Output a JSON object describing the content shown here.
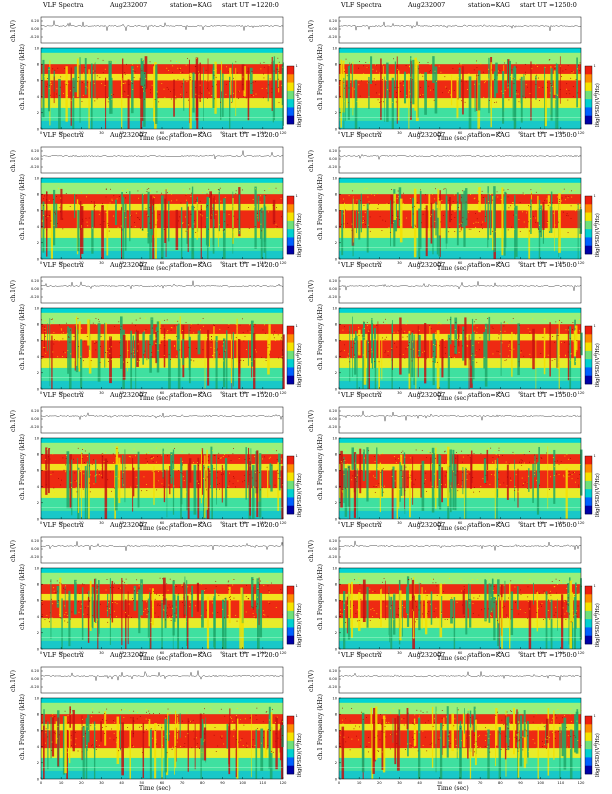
{
  "chart_data": [
    {
      "type": "heatmap",
      "title": "VLF Spectra",
      "date": "Aug232007",
      "station": "station=KAG",
      "start_label": "start  UT",
      "start_ut": "=1220:0",
      "top_ylabel": "ch.1(V)",
      "top_yticks": [
        "0.20",
        "0.00",
        "-0.20"
      ],
      "ylabel": "ch.1\nFrequency (kHz)",
      "xlabel": "Time (sec)",
      "xticks": [
        "0",
        "10",
        "20",
        "30",
        "40",
        "50",
        "60",
        "70",
        "80",
        "90",
        "100",
        "110",
        "120"
      ],
      "yticks": [
        "0",
        "2",
        "4",
        "6",
        "8",
        "10"
      ],
      "xlim": [
        0,
        120
      ],
      "ylim": [
        0,
        10
      ],
      "colorbar_label": "log(PSD)(V²/Hz)",
      "colorbar_ticks": [
        "-1",
        "0",
        "1"
      ],
      "colormap": "jet",
      "grid": false
    },
    {
      "type": "heatmap",
      "title": "VLF Spectra",
      "date": "Aug232007",
      "station": "station=KAG",
      "start_label": "start  UT",
      "start_ut": "=1250:0",
      "top_ylabel": "ch.1(V)",
      "top_yticks": [
        "0.20",
        "0.00",
        "-0.20"
      ],
      "ylabel": "ch.1\nFrequency (kHz)",
      "xlabel": "Time (sec)",
      "xticks": [
        "0",
        "10",
        "20",
        "30",
        "40",
        "50",
        "60",
        "70",
        "80",
        "90",
        "100",
        "110",
        "120"
      ],
      "yticks": [
        "0",
        "2",
        "4",
        "6",
        "8",
        "10"
      ],
      "xlim": [
        0,
        120
      ],
      "ylim": [
        0,
        10
      ],
      "colorbar_label": "log(PSD)(V²/Hz)",
      "colorbar_ticks": [
        "-1",
        "0",
        "1"
      ],
      "colormap": "jet",
      "grid": false
    },
    {
      "type": "heatmap",
      "title": "VLF Spectra",
      "date": "Aug232007",
      "station": "station=KAG",
      "start_label": "start  UT",
      "start_ut": "=1320:0",
      "top_ylabel": "ch.1(V)",
      "top_yticks": [
        "0.20",
        "0.00",
        "-0.20"
      ],
      "ylabel": "ch.1\nFrequency (kHz)",
      "xlabel": "Time (sec)",
      "xticks": [
        "0",
        "10",
        "20",
        "30",
        "40",
        "50",
        "60",
        "70",
        "80",
        "90",
        "100",
        "110",
        "120"
      ],
      "yticks": [
        "0",
        "2",
        "4",
        "6",
        "8",
        "10"
      ],
      "xlim": [
        0,
        120
      ],
      "ylim": [
        0,
        10
      ],
      "colorbar_label": "log(PSD)(V²/Hz)",
      "colorbar_ticks": [
        "-1",
        "0",
        "1"
      ],
      "colormap": "jet",
      "grid": false
    },
    {
      "type": "heatmap",
      "title": "VLF Spectra",
      "date": "Aug232007",
      "station": "station=KAG",
      "start_label": "start  UT",
      "start_ut": "=1350:0",
      "top_ylabel": "ch.1(V)",
      "top_yticks": [
        "0.20",
        "0.00",
        "-0.20"
      ],
      "ylabel": "ch.1\nFrequency (kHz)",
      "xlabel": "Time (sec)",
      "xticks": [
        "0",
        "10",
        "20",
        "30",
        "40",
        "50",
        "60",
        "70",
        "80",
        "90",
        "100",
        "110",
        "120"
      ],
      "yticks": [
        "0",
        "2",
        "4",
        "6",
        "8",
        "10"
      ],
      "xlim": [
        0,
        120
      ],
      "ylim": [
        0,
        10
      ],
      "colorbar_label": "log(PSD)(V²/Hz)",
      "colorbar_ticks": [
        "-1",
        "0",
        "1"
      ],
      "colormap": "jet",
      "grid": false
    },
    {
      "type": "heatmap",
      "title": "VLF Spectra",
      "date": "Aug232007",
      "station": "station=KAG",
      "start_label": "start  UT",
      "start_ut": "=1420:0",
      "top_ylabel": "ch.1(V)",
      "top_yticks": [
        "0.20",
        "0.00",
        "-0.20"
      ],
      "ylabel": "ch.1\nFrequency (kHz)",
      "xlabel": "Time (sec)",
      "xticks": [
        "0",
        "10",
        "20",
        "30",
        "40",
        "50",
        "60",
        "70",
        "80",
        "90",
        "100",
        "110",
        "120"
      ],
      "yticks": [
        "0",
        "2",
        "4",
        "6",
        "8",
        "10"
      ],
      "xlim": [
        0,
        120
      ],
      "ylim": [
        0,
        10
      ],
      "colorbar_label": "log(PSD)(V²/Hz)",
      "colorbar_ticks": [
        "-1",
        "0",
        "1"
      ],
      "colormap": "jet",
      "grid": false
    },
    {
      "type": "heatmap",
      "title": "VLF Spectra",
      "date": "Aug232007",
      "station": "station=KAG",
      "start_label": "start  UT",
      "start_ut": "=1450:0",
      "top_ylabel": "ch.1(V)",
      "top_yticks": [
        "0.20",
        "0.00",
        "-0.20"
      ],
      "ylabel": "ch.1\nFrequency (kHz)",
      "xlabel": "Time (sec)",
      "xticks": [
        "0",
        "10",
        "20",
        "30",
        "40",
        "50",
        "60",
        "70",
        "80",
        "90",
        "100",
        "110",
        "120"
      ],
      "yticks": [
        "0",
        "2",
        "4",
        "6",
        "8",
        "10"
      ],
      "xlim": [
        0,
        120
      ],
      "ylim": [
        0,
        10
      ],
      "colorbar_label": "log(PSD)(V²/Hz)",
      "colorbar_ticks": [
        "-1",
        "0",
        "1"
      ],
      "colormap": "jet",
      "grid": false
    },
    {
      "type": "heatmap",
      "title": "VLF Spectra",
      "date": "Aug232007",
      "station": "station=KAG",
      "start_label": "start  UT",
      "start_ut": "=1520:0",
      "top_ylabel": "ch.1(V)",
      "top_yticks": [
        "0.20",
        "0.00",
        "-0.20"
      ],
      "ylabel": "ch.1\nFrequency (kHz)",
      "xlabel": "Time (sec)",
      "xticks": [
        "0",
        "10",
        "20",
        "30",
        "40",
        "50",
        "60",
        "70",
        "80",
        "90",
        "100",
        "110",
        "120"
      ],
      "yticks": [
        "0",
        "2",
        "4",
        "6",
        "8",
        "10"
      ],
      "xlim": [
        0,
        120
      ],
      "ylim": [
        0,
        10
      ],
      "colorbar_label": "log(PSD)(V²/Hz)",
      "colorbar_ticks": [
        "-1",
        "0",
        "1"
      ],
      "colormap": "jet",
      "grid": false
    },
    {
      "type": "heatmap",
      "title": "VLF Spectra",
      "date": "Aug232007",
      "station": "station=KAG",
      "start_label": "start  UT",
      "start_ut": "=1550:0",
      "top_ylabel": "ch.1(V)",
      "top_yticks": [
        "0.20",
        "0.00",
        "-0.20"
      ],
      "ylabel": "ch.1\nFrequency (kHz)",
      "xlabel": "Time (sec)",
      "xticks": [
        "0",
        "10",
        "20",
        "30",
        "40",
        "50",
        "60",
        "70",
        "80",
        "90",
        "100",
        "110",
        "120"
      ],
      "yticks": [
        "0",
        "2",
        "4",
        "6",
        "8",
        "10"
      ],
      "xlim": [
        0,
        120
      ],
      "ylim": [
        0,
        10
      ],
      "colorbar_label": "log(PSD)(V²/Hz)",
      "colorbar_ticks": [
        "-1",
        "0",
        "1"
      ],
      "colormap": "jet",
      "grid": false
    },
    {
      "type": "heatmap",
      "title": "VLF Spectra",
      "date": "Aug232007",
      "station": "station=KAG",
      "start_label": "start  UT",
      "start_ut": "=1620:0",
      "top_ylabel": "ch.1(V)",
      "top_yticks": [
        "0.20",
        "0.00",
        "-0.20"
      ],
      "ylabel": "ch.1\nFrequency (kHz)",
      "xlabel": "Time (sec)",
      "xticks": [
        "0",
        "10",
        "20",
        "30",
        "40",
        "50",
        "60",
        "70",
        "80",
        "90",
        "100",
        "110",
        "120"
      ],
      "yticks": [
        "0",
        "2",
        "4",
        "6",
        "8",
        "10"
      ],
      "xlim": [
        0,
        120
      ],
      "ylim": [
        0,
        10
      ],
      "colorbar_label": "log(PSD)(V²/Hz)",
      "colorbar_ticks": [
        "-1",
        "0",
        "1"
      ],
      "colormap": "jet",
      "grid": false
    },
    {
      "type": "heatmap",
      "title": "VLF Spectra",
      "date": "Aug232007",
      "station": "station=KAG",
      "start_label": "start  UT",
      "start_ut": "=1650:0",
      "top_ylabel": "ch.1(V)",
      "top_yticks": [
        "0.20",
        "0.00",
        "-0.20"
      ],
      "ylabel": "ch.1\nFrequency (kHz)",
      "xlabel": "Time (sec)",
      "xticks": [
        "0",
        "10",
        "20",
        "30",
        "40",
        "50",
        "60",
        "70",
        "80",
        "90",
        "100",
        "110",
        "120"
      ],
      "yticks": [
        "0",
        "2",
        "4",
        "6",
        "8",
        "10"
      ],
      "xlim": [
        0,
        120
      ],
      "ylim": [
        0,
        10
      ],
      "colorbar_label": "log(PSD)(V²/Hz)",
      "colorbar_ticks": [
        "-1",
        "0",
        "1"
      ],
      "colormap": "jet",
      "grid": false
    },
    {
      "type": "heatmap",
      "title": "VLF Spectra",
      "date": "Aug232007",
      "station": "station=KAG",
      "start_label": "start  UT",
      "start_ut": "=1720:0",
      "top_ylabel": "ch.1(V)",
      "top_yticks": [
        "0.20",
        "0.00",
        "-0.20"
      ],
      "ylabel": "ch.1\nFrequency (kHz)",
      "xlabel": "Time (sec)",
      "xticks": [
        "0",
        "10",
        "20",
        "30",
        "40",
        "50",
        "60",
        "70",
        "80",
        "90",
        "100",
        "110",
        "120"
      ],
      "yticks": [
        "0",
        "2",
        "4",
        "6",
        "8",
        "10"
      ],
      "xlim": [
        0,
        120
      ],
      "ylim": [
        0,
        10
      ],
      "colorbar_label": "log(PSD)(V²/Hz)",
      "colorbar_ticks": [
        "-1",
        "0",
        "1"
      ],
      "colormap": "jet",
      "grid": false
    },
    {
      "type": "heatmap",
      "title": "VLF Spectra",
      "date": "Aug232007",
      "station": "station=KAG",
      "start_label": "start  UT",
      "start_ut": "=1750:0",
      "top_ylabel": "ch.1(V)",
      "top_yticks": [
        "0.20",
        "0.00",
        "-0.20"
      ],
      "ylabel": "ch.1\nFrequency (kHz)",
      "xlabel": "Time (sec)",
      "xticks": [
        "0",
        "10",
        "20",
        "30",
        "40",
        "50",
        "60",
        "70",
        "80",
        "90",
        "100",
        "110",
        "120"
      ],
      "yticks": [
        "0",
        "2",
        "4",
        "6",
        "8",
        "10"
      ],
      "xlim": [
        0,
        120
      ],
      "ylim": [
        0,
        10
      ],
      "colorbar_label": "log(PSD)(V²/Hz)",
      "colorbar_ticks": [
        "-1",
        "0",
        "1"
      ],
      "colormap": "jet",
      "grid": false
    }
  ]
}
